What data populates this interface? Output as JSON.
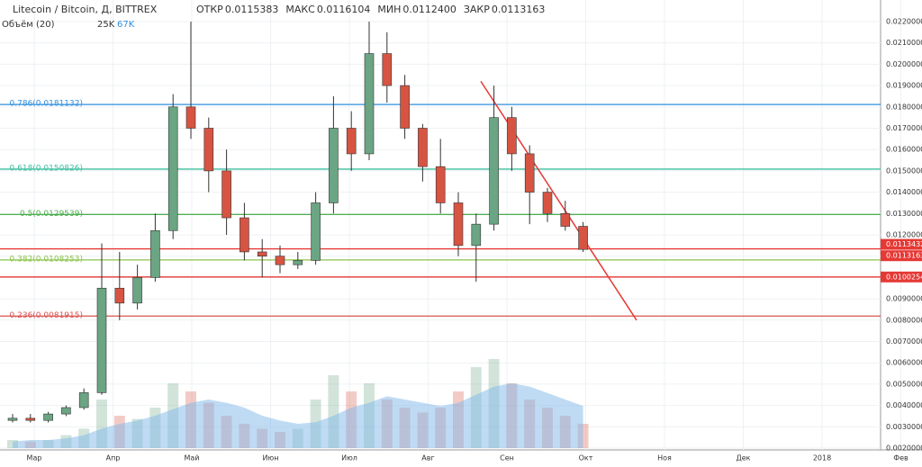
{
  "chart_data": {
    "type": "candlestick",
    "title": "Litecoin / Bitcoin, Д, BITTREX",
    "ohlc_labels": [
      {
        "label": "ОТКР",
        "value": "0.0115383"
      },
      {
        "label": "МАКС",
        "value": "0.0116104"
      },
      {
        "label": "МИН",
        "value": "0.0112400"
      },
      {
        "label": "ЗАКР",
        "value": "0.0113163"
      }
    ],
    "volume_title": "Объём (20)",
    "volume_legend": [
      "25K",
      "67K"
    ],
    "months": [
      "Мар",
      "Апр",
      "Май",
      "Июн",
      "Июл",
      "Авг",
      "Сен",
      "Окт",
      "Ноя",
      "Дек",
      "2018",
      "Фев"
    ],
    "ylim": [
      0.002,
      0.022
    ],
    "yticks": [
      {
        "value": 0.002,
        "label": "0.0020000"
      },
      {
        "value": 0.003,
        "label": "0.0030000"
      },
      {
        "value": 0.004,
        "label": "0.0040000"
      },
      {
        "value": 0.005,
        "label": "0.0050000"
      },
      {
        "value": 0.006,
        "label": "0.0060000"
      },
      {
        "value": 0.007,
        "label": "0.0070000"
      },
      {
        "value": 0.008,
        "label": "0.0080000"
      },
      {
        "value": 0.009,
        "label": "0.0090000"
      },
      {
        "value": 0.01,
        "label": "0.0100000"
      },
      {
        "value": 0.011,
        "label": "0.0110000"
      },
      {
        "value": 0.012,
        "label": "0.0120000"
      },
      {
        "value": 0.013,
        "label": "0.0130000"
      },
      {
        "value": 0.014,
        "label": "0.0140000"
      },
      {
        "value": 0.015,
        "label": "0.0150000"
      },
      {
        "value": 0.016,
        "label": "0.0160000"
      },
      {
        "value": 0.017,
        "label": "0.0170000"
      },
      {
        "value": 0.018,
        "label": "0.0180000"
      },
      {
        "value": 0.019,
        "label": "0.0190000"
      },
      {
        "value": 0.02,
        "label": "0.0200000"
      },
      {
        "value": 0.021,
        "label": "0.0210000"
      },
      {
        "value": 0.022,
        "label": "0.0220000"
      }
    ],
    "fib_levels": [
      {
        "label": "0.786(0.0181132)",
        "value": 0.0181132,
        "color": "#2f8fdf"
      },
      {
        "label": "0.618(0.0150826)",
        "value": 0.0150826,
        "color": "#3fbf9f"
      },
      {
        "label": "0.5(0.0129539)",
        "value": 0.0129539,
        "color": "#4caf50"
      },
      {
        "label": "0.382(0.0108253)",
        "value": 0.0108253,
        "color": "#8bc34a"
      },
      {
        "label": "0.236(0.0081915)",
        "value": 0.0081915,
        "color": "#d9534f"
      }
    ],
    "price_lines": [
      {
        "label": "0.0113432",
        "value": 0.0113432,
        "color": "#e53935"
      },
      {
        "label": "0.0113163",
        "value": 0.0113163,
        "color": "#e53935"
      },
      {
        "label": "0.0100254",
        "value": 0.0100254,
        "color": "#e53935"
      }
    ],
    "trendline": {
      "start": 0.0192,
      "end": 0.008,
      "color": "#e53935"
    },
    "up_color": "#6ba583",
    "down_color": "#d75442",
    "open": [
      0.0033,
      0.0034,
      0.0033,
      0.0036,
      0.0039,
      0.0046,
      0.0095,
      0.0088,
      0.01,
      0.0122,
      0.018,
      0.017,
      0.015,
      0.0128,
      0.0112,
      0.011,
      0.0106,
      0.0108,
      0.0135,
      0.017,
      0.0158,
      0.0205,
      0.019,
      0.017,
      0.0152,
      0.0135,
      0.0115,
      0.0125,
      0.0175,
      0.0158,
      0.014,
      0.013,
      0.0124
    ],
    "high": [
      0.0036,
      0.0036,
      0.0037,
      0.004,
      0.0048,
      0.0116,
      0.0112,
      0.0106,
      0.013,
      0.0186,
      0.022,
      0.0175,
      0.016,
      0.0135,
      0.0118,
      0.0115,
      0.0112,
      0.014,
      0.0185,
      0.0178,
      0.022,
      0.0215,
      0.0195,
      0.0172,
      0.0165,
      0.014,
      0.013,
      0.019,
      0.018,
      0.0162,
      0.0142,
      0.0136,
      0.0126
    ],
    "low": [
      0.0032,
      0.0032,
      0.0032,
      0.0035,
      0.0038,
      0.0045,
      0.008,
      0.0085,
      0.0098,
      0.0118,
      0.0165,
      0.014,
      0.012,
      0.0108,
      0.01,
      0.0102,
      0.0104,
      0.0106,
      0.013,
      0.015,
      0.0155,
      0.0182,
      0.0165,
      0.0145,
      0.013,
      0.011,
      0.0098,
      0.0122,
      0.015,
      0.0125,
      0.0126,
      0.0122,
      0.0112
    ],
    "close": [
      0.0034,
      0.0033,
      0.0036,
      0.0039,
      0.0046,
      0.0095,
      0.0088,
      0.01,
      0.0122,
      0.018,
      0.017,
      0.015,
      0.0128,
      0.0112,
      0.011,
      0.0106,
      0.0108,
      0.0135,
      0.017,
      0.0158,
      0.0205,
      0.019,
      0.017,
      0.0152,
      0.0135,
      0.0115,
      0.0125,
      0.0175,
      0.0158,
      0.014,
      0.013,
      0.0124,
      0.0113163
    ],
    "volume": [
      5,
      4,
      5,
      8,
      12,
      30,
      20,
      18,
      25,
      40,
      35,
      28,
      20,
      15,
      12,
      10,
      12,
      30,
      45,
      35,
      40,
      30,
      25,
      22,
      25,
      35,
      50,
      55,
      40,
      30,
      25,
      20,
      15
    ],
    "volume_ma": [
      4,
      5,
      5,
      6,
      8,
      12,
      15,
      17,
      20,
      24,
      28,
      30,
      28,
      25,
      20,
      17,
      15,
      16,
      20,
      25,
      28,
      32,
      30,
      28,
      26,
      28,
      33,
      38,
      40,
      38,
      34,
      30,
      26
    ]
  }
}
